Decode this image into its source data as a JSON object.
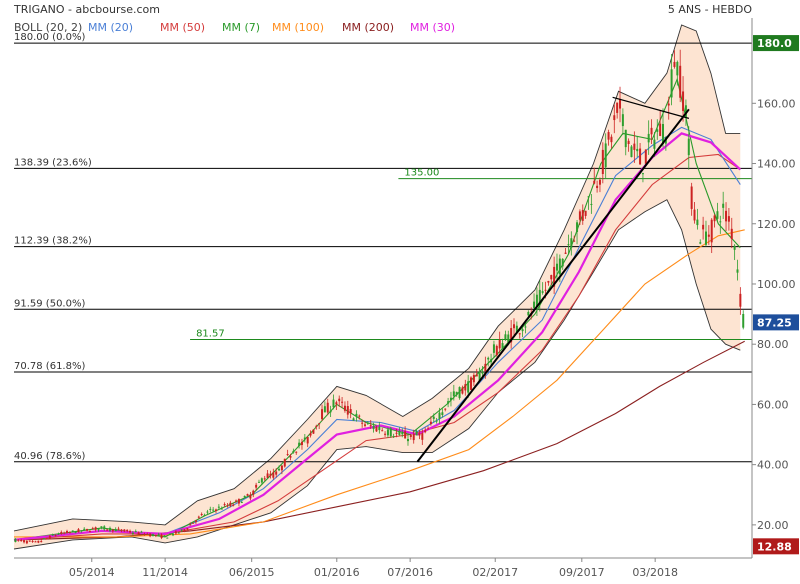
{
  "header": {
    "title": "TRIGANO - abcbourse.com",
    "period": "5 ANS - HEBDO"
  },
  "legend": [
    {
      "label": "BOLL (20, 2)",
      "color": "#444444"
    },
    {
      "label": "MM (20)",
      "color": "#4a7fd6"
    },
    {
      "label": "MM (50)",
      "color": "#d43c3c"
    },
    {
      "label": "MM (7)",
      "color": "#2a9a2a"
    },
    {
      "label": "MM (100)",
      "color": "#ff8c1a"
    },
    {
      "label": "MM (200)",
      "color": "#8b2020"
    },
    {
      "label": "MM (30)",
      "color": "#e020e0"
    }
  ],
  "colors": {
    "up": "#2e9e2e",
    "down": "#cc2222",
    "band_fill": "#fde4d2",
    "band_line": "#333333",
    "fib_line": "#000000",
    "support_line": "#1e8a1e",
    "trend_line": "#000000"
  },
  "chart_data": {
    "type": "candlestick",
    "x_ticks": [
      {
        "label": "05/2014",
        "t": 2014.33
      },
      {
        "label": "11/2014",
        "t": 2014.83
      },
      {
        "label": "06/2015",
        "t": 2015.42
      },
      {
        "label": "01/2016",
        "t": 2016.0
      },
      {
        "label": "07/2016",
        "t": 2016.5
      },
      {
        "label": "02/2017",
        "t": 2017.08
      },
      {
        "label": "09/2017",
        "t": 2017.67
      },
      {
        "label": "03/2018",
        "t": 2018.17
      }
    ],
    "x_range": [
      2013.8,
      2018.83
    ],
    "y_ticks": [
      {
        "label": "20.00",
        "v": 20
      },
      {
        "label": "40.00",
        "v": 40
      },
      {
        "label": "60.00",
        "v": 60
      },
      {
        "label": "80.00",
        "v": 80
      },
      {
        "label": "100.00",
        "v": 100
      },
      {
        "label": "120.00",
        "v": 120
      },
      {
        "label": "140.00",
        "v": 140
      },
      {
        "label": "160.00",
        "v": 160
      }
    ],
    "ylim": [
      9,
      187
    ],
    "price_badges": [
      {
        "label": "180.0",
        "v": 180,
        "bg": "#1f7a1f"
      },
      {
        "label": "87.25",
        "v": 87.25,
        "bg": "#1e4f9c"
      },
      {
        "label": "12.88",
        "v": 12.88,
        "bg": "#b01a1a"
      }
    ],
    "fibonacci": [
      {
        "label": "180.00  (0.0%)",
        "v": 180
      },
      {
        "label": "138.39  (23.6%)",
        "v": 138.39
      },
      {
        "label": "112.39  (38.2%)",
        "v": 112.39
      },
      {
        "label": "91.59  (50.0%)",
        "v": 91.59
      },
      {
        "label": "70.78  (61.8%)",
        "v": 70.78
      },
      {
        "label": "40.96  (78.6%)",
        "v": 40.96
      }
    ],
    "support_lines": [
      {
        "label": "135.00",
        "v": 135,
        "t_start": 2016.42
      },
      {
        "label": "81.57",
        "v": 81.57,
        "t_start": 2015.0
      }
    ],
    "trend_lines": [
      {
        "t1": 2016.55,
        "v1": 41,
        "t2": 2018.4,
        "v2": 158
      },
      {
        "t1": 2017.88,
        "v1": 162,
        "t2": 2018.4,
        "v2": 155
      }
    ],
    "price_path": [
      [
        2013.8,
        15
      ],
      [
        2013.95,
        14
      ],
      [
        2014.1,
        17
      ],
      [
        2014.25,
        18
      ],
      [
        2014.4,
        19
      ],
      [
        2014.55,
        18
      ],
      [
        2014.7,
        17
      ],
      [
        2014.83,
        16
      ],
      [
        2014.95,
        18
      ],
      [
        2015.05,
        22
      ],
      [
        2015.15,
        25
      ],
      [
        2015.3,
        27
      ],
      [
        2015.42,
        30
      ],
      [
        2015.5,
        36
      ],
      [
        2015.6,
        37
      ],
      [
        2015.7,
        45
      ],
      [
        2015.8,
        48
      ],
      [
        2015.9,
        57
      ],
      [
        2016.0,
        61
      ],
      [
        2016.1,
        57
      ],
      [
        2016.2,
        53
      ],
      [
        2016.3,
        52
      ],
      [
        2016.42,
        50
      ],
      [
        2016.5,
        49
      ],
      [
        2016.6,
        50
      ],
      [
        2016.7,
        57
      ],
      [
        2016.8,
        63
      ],
      [
        2016.95,
        68
      ],
      [
        2017.08,
        78
      ],
      [
        2017.2,
        84
      ],
      [
        2017.3,
        88
      ],
      [
        2017.42,
        98
      ],
      [
        2017.5,
        104
      ],
      [
        2017.58,
        114
      ],
      [
        2017.67,
        122
      ],
      [
        2017.75,
        132
      ],
      [
        2017.83,
        142
      ],
      [
        2017.92,
        158
      ],
      [
        2018.0,
        146
      ],
      [
        2018.08,
        140
      ],
      [
        2018.17,
        150
      ],
      [
        2018.25,
        152
      ],
      [
        2018.3,
        176
      ],
      [
        2018.33,
        170
      ],
      [
        2018.38,
        158
      ],
      [
        2018.42,
        128
      ],
      [
        2018.48,
        116
      ],
      [
        2018.55,
        117
      ],
      [
        2018.62,
        125
      ],
      [
        2018.68,
        120
      ],
      [
        2018.72,
        112
      ],
      [
        2018.76,
        90
      ],
      [
        2018.78,
        87.25
      ]
    ],
    "series": [
      {
        "key": "boll_upper",
        "color": "#333333",
        "points": [
          [
            2013.8,
            18
          ],
          [
            2014.2,
            22
          ],
          [
            2014.6,
            21
          ],
          [
            2014.83,
            20
          ],
          [
            2015.05,
            28
          ],
          [
            2015.3,
            32
          ],
          [
            2015.55,
            42
          ],
          [
            2015.8,
            55
          ],
          [
            2016.0,
            66
          ],
          [
            2016.2,
            63
          ],
          [
            2016.45,
            56
          ],
          [
            2016.65,
            62
          ],
          [
            2016.9,
            72
          ],
          [
            2017.1,
            86
          ],
          [
            2017.35,
            98
          ],
          [
            2017.55,
            118
          ],
          [
            2017.75,
            140
          ],
          [
            2017.92,
            164
          ],
          [
            2018.1,
            160
          ],
          [
            2018.25,
            170
          ],
          [
            2018.35,
            186
          ],
          [
            2018.45,
            184
          ],
          [
            2018.55,
            170
          ],
          [
            2018.65,
            150
          ],
          [
            2018.75,
            150
          ]
        ]
      },
      {
        "key": "boll_lower",
        "color": "#333333",
        "points": [
          [
            2013.8,
            12
          ],
          [
            2014.2,
            15
          ],
          [
            2014.6,
            16
          ],
          [
            2014.83,
            14
          ],
          [
            2015.05,
            16
          ],
          [
            2015.3,
            20
          ],
          [
            2015.55,
            24
          ],
          [
            2015.8,
            33
          ],
          [
            2016.0,
            45
          ],
          [
            2016.2,
            46
          ],
          [
            2016.45,
            44
          ],
          [
            2016.65,
            44
          ],
          [
            2016.9,
            52
          ],
          [
            2017.1,
            64
          ],
          [
            2017.35,
            74
          ],
          [
            2017.55,
            88
          ],
          [
            2017.75,
            104
          ],
          [
            2017.92,
            118
          ],
          [
            2018.1,
            124
          ],
          [
            2018.25,
            128
          ],
          [
            2018.35,
            118
          ],
          [
            2018.45,
            100
          ],
          [
            2018.55,
            85
          ],
          [
            2018.65,
            80
          ],
          [
            2018.75,
            78
          ]
        ]
      },
      {
        "key": "mm20",
        "color": "#4a7fd6",
        "points": [
          [
            2013.8,
            15
          ],
          [
            2014.4,
            18
          ],
          [
            2014.83,
            17
          ],
          [
            2015.2,
            24
          ],
          [
            2015.5,
            32
          ],
          [
            2015.8,
            45
          ],
          [
            2016.0,
            55
          ],
          [
            2016.3,
            54
          ],
          [
            2016.55,
            51
          ],
          [
            2016.8,
            58
          ],
          [
            2017.1,
            74
          ],
          [
            2017.4,
            88
          ],
          [
            2017.65,
            112
          ],
          [
            2017.9,
            136
          ],
          [
            2018.15,
            146
          ],
          [
            2018.35,
            152
          ],
          [
            2018.55,
            148
          ],
          [
            2018.75,
            133
          ]
        ]
      },
      {
        "key": "mm50",
        "color": "#d43c3c",
        "points": [
          [
            2013.8,
            15
          ],
          [
            2014.4,
            17
          ],
          [
            2014.83,
            17
          ],
          [
            2015.3,
            21
          ],
          [
            2015.6,
            28
          ],
          [
            2015.9,
            38
          ],
          [
            2016.2,
            48
          ],
          [
            2016.5,
            50
          ],
          [
            2016.8,
            54
          ],
          [
            2017.1,
            64
          ],
          [
            2017.4,
            78
          ],
          [
            2017.65,
            96
          ],
          [
            2017.9,
            118
          ],
          [
            2018.15,
            133
          ],
          [
            2018.4,
            142
          ],
          [
            2018.6,
            143
          ],
          [
            2018.75,
            138
          ]
        ]
      },
      {
        "key": "mm7",
        "color": "#2a9a2a",
        "points": [
          [
            2013.8,
            15
          ],
          [
            2014.1,
            17
          ],
          [
            2014.4,
            19
          ],
          [
            2014.83,
            16
          ],
          [
            2015.1,
            23
          ],
          [
            2015.42,
            30
          ],
          [
            2015.7,
            44
          ],
          [
            2016.0,
            60
          ],
          [
            2016.2,
            54
          ],
          [
            2016.5,
            50
          ],
          [
            2016.75,
            60
          ],
          [
            2017.08,
            76
          ],
          [
            2017.35,
            90
          ],
          [
            2017.58,
            110
          ],
          [
            2017.8,
            140
          ],
          [
            2017.95,
            150
          ],
          [
            2018.15,
            148
          ],
          [
            2018.32,
            168
          ],
          [
            2018.45,
            140
          ],
          [
            2018.6,
            120
          ],
          [
            2018.75,
            112
          ]
        ]
      },
      {
        "key": "mm100",
        "color": "#ff8c1a",
        "points": [
          [
            2013.8,
            16
          ],
          [
            2014.5,
            16
          ],
          [
            2015.0,
            17
          ],
          [
            2015.5,
            21
          ],
          [
            2016.0,
            30
          ],
          [
            2016.5,
            38
          ],
          [
            2016.9,
            45
          ],
          [
            2017.2,
            56
          ],
          [
            2017.5,
            68
          ],
          [
            2017.8,
            84
          ],
          [
            2018.1,
            100
          ],
          [
            2018.4,
            110
          ],
          [
            2018.6,
            116
          ],
          [
            2018.78,
            118
          ]
        ]
      },
      {
        "key": "mm200",
        "color": "#8b2020",
        "points": [
          [
            2013.8,
            15
          ],
          [
            2014.5,
            16
          ],
          [
            2015.0,
            18
          ],
          [
            2015.5,
            21
          ],
          [
            2016.0,
            26
          ],
          [
            2016.5,
            31
          ],
          [
            2017.0,
            38
          ],
          [
            2017.5,
            47
          ],
          [
            2017.9,
            57
          ],
          [
            2018.2,
            66
          ],
          [
            2018.5,
            74
          ],
          [
            2018.78,
            81
          ]
        ]
      },
      {
        "key": "mm30",
        "color": "#e020e0",
        "points": [
          [
            2013.8,
            15
          ],
          [
            2014.4,
            18
          ],
          [
            2014.83,
            17
          ],
          [
            2015.2,
            22
          ],
          [
            2015.5,
            30
          ],
          [
            2015.8,
            42
          ],
          [
            2016.0,
            50
          ],
          [
            2016.3,
            53
          ],
          [
            2016.55,
            50
          ],
          [
            2016.8,
            56
          ],
          [
            2017.1,
            68
          ],
          [
            2017.4,
            84
          ],
          [
            2017.65,
            104
          ],
          [
            2017.9,
            128
          ],
          [
            2018.15,
            142
          ],
          [
            2018.35,
            150
          ],
          [
            2018.55,
            147
          ],
          [
            2018.75,
            138
          ]
        ]
      }
    ]
  }
}
